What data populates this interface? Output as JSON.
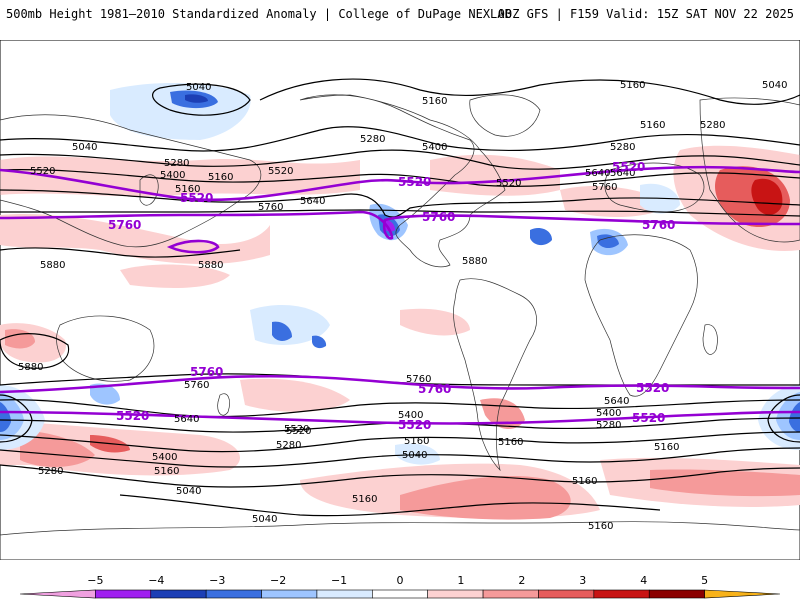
{
  "header": {
    "left": "500mb Height 1981–2010 Standardized Anomaly | College of DuPage NEXLAB",
    "right": "00Z GFS | F159 Valid: 15Z SAT NOV 22 2025"
  },
  "colors": {
    "anom_neg": [
      "#fde2f0",
      "#a020f0",
      "#1c3fb5",
      "#3a6fe0",
      "#bcdcff"
    ],
    "anom_pos": [
      "#fcd1d1",
      "#f59a9a",
      "#e65c5c",
      "#c81414",
      "#8b0000"
    ],
    "contour": "#000000",
    "highlight_contour": "#9400d3"
  },
  "contour_labels": {
    "black": [
      "5040",
      "5160",
      "5040",
      "5280",
      "5160",
      "5280",
      "5160",
      "5040",
      "5520",
      "5280",
      "5400",
      "5160",
      "5520",
      "5280",
      "5400",
      "5640",
      "5760",
      "5640",
      "5160",
      "5880",
      "5880",
      "5880",
      "5880",
      "5520",
      "5760",
      "5640",
      "5760",
      "5400",
      "5640",
      "5520",
      "5280",
      "5160",
      "5040",
      "5400",
      "5520",
      "5280",
      "5160",
      "5040",
      "5160",
      "5760",
      "5640",
      "5400",
      "5280",
      "5160",
      "5160",
      "5040",
      "5160",
      "5160"
    ],
    "purple": [
      "5520",
      "5520",
      "5520",
      "5760",
      "5760",
      "5760",
      "5760",
      "5760",
      "5520",
      "5520",
      "5520",
      "5520"
    ]
  },
  "colorbar": {
    "ticks": [
      "−5",
      "−4",
      "−3",
      "−2",
      "−1",
      "0",
      "1",
      "2",
      "3",
      "4",
      "5"
    ],
    "colors": [
      "#f0a0e0",
      "#a020f0",
      "#1c3fb5",
      "#3a6fe0",
      "#9ec5ff",
      "#d9ebff",
      "#ffffff",
      "#fcd1d1",
      "#f59a9a",
      "#e65c5c",
      "#c81414",
      "#8b0000",
      "#f7b21a"
    ]
  }
}
